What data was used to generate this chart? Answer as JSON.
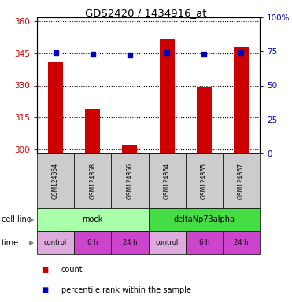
{
  "title": "GDS2420 / 1434916_at",
  "samples": [
    "GSM124854",
    "GSM124868",
    "GSM124866",
    "GSM124864",
    "GSM124865",
    "GSM124867"
  ],
  "counts": [
    341,
    319,
    302,
    352,
    329,
    348
  ],
  "percentile_ranks": [
    74,
    73,
    72,
    74,
    73,
    74
  ],
  "ylim_left": [
    298,
    362
  ],
  "ylim_right": [
    0,
    100
  ],
  "yticks_left": [
    300,
    315,
    330,
    345,
    360
  ],
  "yticks_right": [
    0,
    25,
    50,
    75,
    100
  ],
  "ytick_labels_right": [
    "0",
    "25",
    "50",
    "75",
    "100%"
  ],
  "bar_color": "#cc0000",
  "dot_color": "#0000bb",
  "cell_line_groups": [
    {
      "label": "mock",
      "span": [
        0,
        3
      ],
      "color": "#aaffaa"
    },
    {
      "label": "deltaNp73alpha",
      "span": [
        3,
        6
      ],
      "color": "#44dd44"
    }
  ],
  "time_labels": [
    "control",
    "6 h",
    "24 h",
    "control",
    "6 h",
    "24 h"
  ],
  "time_colors": [
    "#ddaadd",
    "#cc44cc",
    "#cc44cc",
    "#ddaadd",
    "#cc44cc",
    "#cc44cc"
  ],
  "background_color": "#ffffff",
  "sample_bg_color": "#cccccc",
  "bar_width": 0.4
}
